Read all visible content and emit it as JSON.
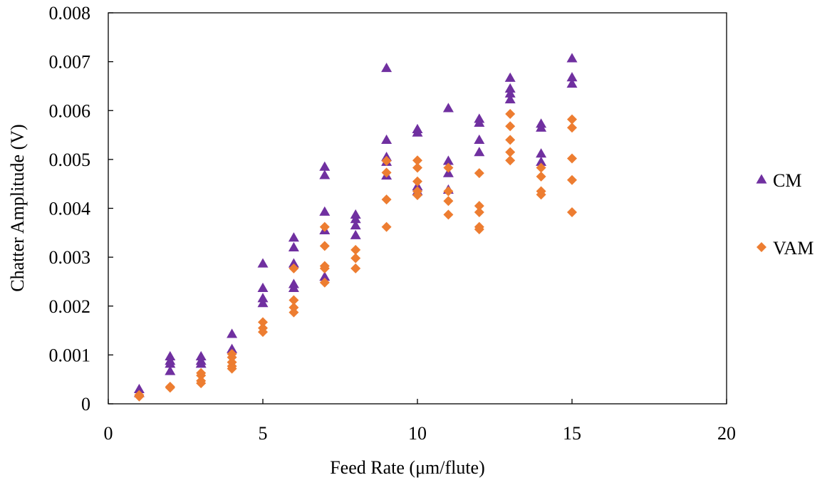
{
  "chart_data": {
    "type": "scatter",
    "title": "",
    "xlabel": "Feed Rate (μm/flute)",
    "ylabel": "Chatter Amplitude (V)",
    "xlim": [
      0,
      20
    ],
    "ylim": [
      0,
      0.008
    ],
    "x_ticks": [
      "0",
      "5",
      "10",
      "15",
      "20"
    ],
    "y_ticks": [
      "0",
      "0.001",
      "0.002",
      "0.003",
      "0.004",
      "0.005",
      "0.006",
      "0.007",
      "0.008"
    ],
    "grid": false,
    "legend_position": "right",
    "series": [
      {
        "name": "CM",
        "marker": "triangle",
        "color": "#7030a0",
        "points": [
          [
            1,
            0.0003
          ],
          [
            1,
            0.00022
          ],
          [
            2,
            0.00097
          ],
          [
            2,
            0.00088
          ],
          [
            2,
            0.00082
          ],
          [
            2,
            0.00067
          ],
          [
            3,
            0.00097
          ],
          [
            3,
            0.00088
          ],
          [
            3,
            0.00082
          ],
          [
            4,
            0.00143
          ],
          [
            4,
            0.00112
          ],
          [
            5,
            0.00287
          ],
          [
            5,
            0.00237
          ],
          [
            5,
            0.00216
          ],
          [
            5,
            0.00206
          ],
          [
            6,
            0.0034
          ],
          [
            6,
            0.0032
          ],
          [
            6,
            0.00287
          ],
          [
            6,
            0.00245
          ],
          [
            6,
            0.00237
          ],
          [
            7,
            0.00485
          ],
          [
            7,
            0.00468
          ],
          [
            7,
            0.00393
          ],
          [
            7,
            0.00355
          ],
          [
            7,
            0.0026
          ],
          [
            8,
            0.00387
          ],
          [
            8,
            0.00378
          ],
          [
            8,
            0.00365
          ],
          [
            8,
            0.00345
          ],
          [
            9,
            0.00687
          ],
          [
            9,
            0.0054
          ],
          [
            9,
            0.00505
          ],
          [
            9,
            0.00495
          ],
          [
            9,
            0.00467
          ],
          [
            10,
            0.00562
          ],
          [
            10,
            0.00555
          ],
          [
            10,
            0.00445
          ],
          [
            10,
            0.00435
          ],
          [
            11,
            0.00605
          ],
          [
            11,
            0.00497
          ],
          [
            11,
            0.00472
          ],
          [
            11,
            0.00438
          ],
          [
            12,
            0.00583
          ],
          [
            12,
            0.00575
          ],
          [
            12,
            0.0054
          ],
          [
            12,
            0.00515
          ],
          [
            13,
            0.00667
          ],
          [
            13,
            0.00645
          ],
          [
            13,
            0.00635
          ],
          [
            13,
            0.00623
          ],
          [
            14,
            0.00573
          ],
          [
            14,
            0.00565
          ],
          [
            14,
            0.00512
          ],
          [
            14,
            0.00495
          ],
          [
            15,
            0.00707
          ],
          [
            15,
            0.00668
          ],
          [
            15,
            0.00655
          ]
        ]
      },
      {
        "name": "VAM",
        "marker": "diamond",
        "color": "#ed7d31",
        "points": [
          [
            1,
            0.00018
          ],
          [
            1,
            0.00015
          ],
          [
            2,
            0.00035
          ],
          [
            2,
            0.00033
          ],
          [
            3,
            0.00063
          ],
          [
            3,
            0.00058
          ],
          [
            3,
            0.00047
          ],
          [
            3,
            0.00042
          ],
          [
            4,
            0.00102
          ],
          [
            4,
            0.00095
          ],
          [
            4,
            0.00085
          ],
          [
            4,
            0.00077
          ],
          [
            4,
            0.00072
          ],
          [
            5,
            0.00167
          ],
          [
            5,
            0.00155
          ],
          [
            5,
            0.00147
          ],
          [
            6,
            0.00277
          ],
          [
            6,
            0.00212
          ],
          [
            6,
            0.00197
          ],
          [
            6,
            0.00187
          ],
          [
            7,
            0.00362
          ],
          [
            7,
            0.00323
          ],
          [
            7,
            0.00282
          ],
          [
            7,
            0.00277
          ],
          [
            7,
            0.00248
          ],
          [
            8,
            0.00315
          ],
          [
            8,
            0.00298
          ],
          [
            8,
            0.00277
          ],
          [
            9,
            0.00497
          ],
          [
            9,
            0.00473
          ],
          [
            9,
            0.00418
          ],
          [
            9,
            0.00362
          ],
          [
            10,
            0.00498
          ],
          [
            10,
            0.00483
          ],
          [
            10,
            0.00455
          ],
          [
            10,
            0.00435
          ],
          [
            10,
            0.00427
          ],
          [
            11,
            0.00483
          ],
          [
            11,
            0.00435
          ],
          [
            11,
            0.00415
          ],
          [
            11,
            0.00387
          ],
          [
            12,
            0.00472
          ],
          [
            12,
            0.00405
          ],
          [
            12,
            0.00392
          ],
          [
            12,
            0.00362
          ],
          [
            12,
            0.00357
          ],
          [
            13,
            0.00593
          ],
          [
            13,
            0.00568
          ],
          [
            13,
            0.0054
          ],
          [
            13,
            0.00515
          ],
          [
            13,
            0.00498
          ],
          [
            14,
            0.00483
          ],
          [
            14,
            0.00465
          ],
          [
            14,
            0.00435
          ],
          [
            14,
            0.00428
          ],
          [
            15,
            0.00582
          ],
          [
            15,
            0.00565
          ],
          [
            15,
            0.00502
          ],
          [
            15,
            0.00458
          ],
          [
            15,
            0.00392
          ]
        ]
      }
    ]
  }
}
